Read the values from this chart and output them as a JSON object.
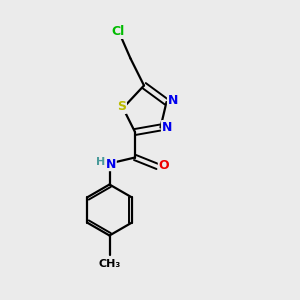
{
  "background_color": "#ebebeb",
  "bond_color": "#000000",
  "atom_colors": {
    "Cl": "#00bb00",
    "S": "#bbbb00",
    "N": "#0000ee",
    "O": "#ee0000",
    "H": "#4a9a9a",
    "C": "#000000"
  },
  "figsize": [
    3.0,
    3.0
  ],
  "dpi": 100
}
